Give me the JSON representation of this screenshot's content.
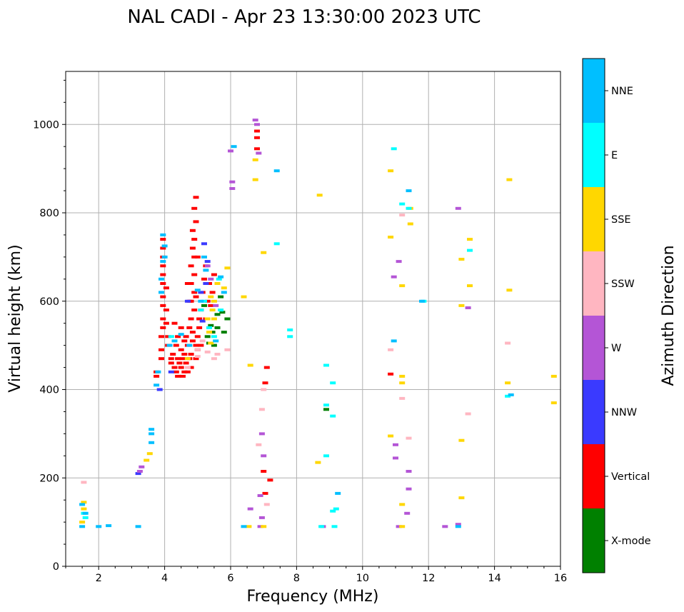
{
  "chart_data": {
    "type": "scatter",
    "title": "NAL CADI - Apr 23 13:30:00 2023 UTC",
    "xlabel": "Frequency (MHz)",
    "ylabel": "Virtual height (km)",
    "xlim": [
      1,
      16
    ],
    "ylim": [
      0,
      1120
    ],
    "xticks": [
      2,
      4,
      6,
      8,
      10,
      12,
      14,
      16
    ],
    "yticks": [
      0,
      200,
      400,
      600,
      800,
      1000
    ],
    "grid": true,
    "colorbar": {
      "title": "Azimuth Direction",
      "categories": [
        {
          "label": "X-mode",
          "color": "#008000"
        },
        {
          "label": "Vertical",
          "color": "#ff0000"
        },
        {
          "label": "NNW",
          "color": "#3a3aff"
        },
        {
          "label": "W",
          "color": "#b455d6"
        },
        {
          "label": "SSW",
          "color": "#ffb6c1"
        },
        {
          "label": "SSE",
          "color": "#ffd700"
        },
        {
          "label": "E",
          "color": "#00ffff"
        },
        {
          "label": "NNE",
          "color": "#00bfff"
        }
      ]
    },
    "series": [
      {
        "name": "X-mode",
        "points": [
          [
            5.3,
            520
          ],
          [
            5.4,
            545
          ],
          [
            5.5,
            500
          ],
          [
            5.6,
            570
          ],
          [
            5.7,
            610
          ],
          [
            5.8,
            530
          ],
          [
            5.9,
            560
          ],
          [
            5.2,
            590
          ],
          [
            5.45,
            530
          ],
          [
            8.9,
            355
          ],
          [
            5.6,
            540
          ],
          [
            5.75,
            575
          ],
          [
            5.35,
            505
          ]
        ]
      },
      {
        "name": "Vertical",
        "points": [
          [
            3.75,
            430
          ],
          [
            3.75,
            440
          ],
          [
            3.9,
            470
          ],
          [
            3.9,
            490
          ],
          [
            3.9,
            520
          ],
          [
            3.95,
            540
          ],
          [
            3.95,
            560
          ],
          [
            3.95,
            590
          ],
          [
            3.95,
            610
          ],
          [
            3.95,
            640
          ],
          [
            3.95,
            660
          ],
          [
            3.95,
            680
          ],
          [
            3.95,
            700
          ],
          [
            3.95,
            720
          ],
          [
            3.95,
            740
          ],
          [
            4.05,
            580
          ],
          [
            4.05,
            550
          ],
          [
            4.1,
            520
          ],
          [
            4.1,
            500
          ],
          [
            4.05,
            630
          ],
          [
            4.2,
            470
          ],
          [
            4.2,
            460
          ],
          [
            4.25,
            480
          ],
          [
            4.3,
            450
          ],
          [
            4.35,
            440
          ],
          [
            4.4,
            470
          ],
          [
            4.4,
            430
          ],
          [
            4.45,
            460
          ],
          [
            4.5,
            490
          ],
          [
            4.5,
            450
          ],
          [
            4.55,
            470
          ],
          [
            4.55,
            430
          ],
          [
            4.6,
            440
          ],
          [
            4.6,
            480
          ],
          [
            4.65,
            520
          ],
          [
            4.65,
            460
          ],
          [
            4.7,
            500
          ],
          [
            4.7,
            440
          ],
          [
            4.75,
            470
          ],
          [
            4.75,
            540
          ],
          [
            4.8,
            450
          ],
          [
            4.8,
            480
          ],
          [
            4.85,
            510
          ],
          [
            4.85,
            530
          ],
          [
            4.8,
            560
          ],
          [
            4.8,
            600
          ],
          [
            4.8,
            640
          ],
          [
            4.8,
            680
          ],
          [
            4.85,
            720
          ],
          [
            4.85,
            760
          ],
          [
            4.9,
            740
          ],
          [
            4.9,
            700
          ],
          [
            4.9,
            660
          ],
          [
            4.9,
            620
          ],
          [
            4.9,
            580
          ],
          [
            4.95,
            500
          ],
          [
            4.95,
            470
          ],
          [
            5.0,
            520
          ],
          [
            5.0,
            490
          ],
          [
            5.05,
            540
          ],
          [
            5.05,
            560
          ],
          [
            5.1,
            500
          ],
          [
            5.1,
            580
          ],
          [
            5.15,
            620
          ],
          [
            5.2,
            650
          ],
          [
            5.25,
            680
          ],
          [
            5.25,
            560
          ],
          [
            5.3,
            600
          ],
          [
            5.35,
            640
          ],
          [
            5.4,
            590
          ],
          [
            5.45,
            620
          ],
          [
            5.5,
            660
          ],
          [
            4.3,
            550
          ],
          [
            4.4,
            520
          ],
          [
            4.5,
            540
          ],
          [
            4.35,
            500
          ],
          [
            4.6,
            510
          ],
          [
            4.75,
            600
          ],
          [
            4.7,
            640
          ],
          [
            4.95,
            610
          ],
          [
            5.0,
            700
          ],
          [
            4.95,
            780
          ],
          [
            4.9,
            810
          ],
          [
            4.95,
            835
          ],
          [
            6.8,
            970
          ],
          [
            6.8,
            985
          ],
          [
            6.8,
            945
          ],
          [
            7.05,
            415
          ],
          [
            7.0,
            215
          ],
          [
            7.05,
            165
          ],
          [
            7.1,
            450
          ],
          [
            7.2,
            195
          ],
          [
            10.85,
            435
          ]
        ]
      },
      {
        "name": "NNW",
        "points": [
          [
            5.2,
            730
          ],
          [
            5.3,
            690
          ],
          [
            5.1,
            620
          ],
          [
            5.25,
            640
          ],
          [
            3.2,
            210
          ],
          [
            4.2,
            440
          ],
          [
            3.85,
            400
          ],
          [
            4.7,
            600
          ],
          [
            5.15,
            555
          ]
        ]
      },
      {
        "name": "W",
        "points": [
          [
            3.25,
            215
          ],
          [
            3.3,
            225
          ],
          [
            5.3,
            680
          ],
          [
            5.4,
            650
          ],
          [
            6.0,
            940
          ],
          [
            6.05,
            855
          ],
          [
            6.05,
            870
          ],
          [
            6.75,
            1010
          ],
          [
            6.8,
            1000
          ],
          [
            6.85,
            935
          ],
          [
            6.95,
            300
          ],
          [
            7.0,
            250
          ],
          [
            6.9,
            160
          ],
          [
            6.9,
            90
          ],
          [
            6.95,
            110
          ],
          [
            6.6,
            130
          ],
          [
            11.1,
            690
          ],
          [
            10.95,
            655
          ],
          [
            11.0,
            275
          ],
          [
            11.0,
            245
          ],
          [
            11.4,
            215
          ],
          [
            11.4,
            175
          ],
          [
            11.35,
            120
          ],
          [
            12.9,
            810
          ],
          [
            13.2,
            585
          ],
          [
            12.5,
            90
          ],
          [
            12.9,
            95
          ],
          [
            8.8,
            90
          ],
          [
            11.1,
            90
          ],
          [
            5.55,
            590
          ]
        ]
      },
      {
        "name": "SSW",
        "points": [
          [
            1.55,
            190
          ],
          [
            5.0,
            490
          ],
          [
            5.3,
            485
          ],
          [
            5.5,
            470
          ],
          [
            5.9,
            490
          ],
          [
            5.6,
            480
          ],
          [
            5.0,
            475
          ],
          [
            7.0,
            400
          ],
          [
            6.95,
            355
          ],
          [
            7.1,
            140
          ],
          [
            11.2,
            795
          ],
          [
            10.85,
            490
          ],
          [
            11.2,
            380
          ],
          [
            11.4,
            290
          ],
          [
            13.2,
            345
          ],
          [
            14.4,
            505
          ],
          [
            6.85,
            275
          ],
          [
            4.7,
            450
          ],
          [
            5.15,
            510
          ]
        ]
      },
      {
        "name": "SSE",
        "points": [
          [
            1.5,
            100
          ],
          [
            1.55,
            130
          ],
          [
            1.55,
            145
          ],
          [
            3.45,
            240
          ],
          [
            3.55,
            255
          ],
          [
            5.3,
            560
          ],
          [
            5.4,
            610
          ],
          [
            5.5,
            600
          ],
          [
            5.6,
            640
          ],
          [
            5.5,
            560
          ],
          [
            5.45,
            580
          ],
          [
            5.4,
            505
          ],
          [
            5.35,
            530
          ],
          [
            5.8,
            630
          ],
          [
            5.9,
            675
          ],
          [
            6.4,
            610
          ],
          [
            6.6,
            455
          ],
          [
            6.75,
            920
          ],
          [
            6.75,
            875
          ],
          [
            6.55,
            90
          ],
          [
            7.0,
            90
          ],
          [
            7.0,
            710
          ],
          [
            8.7,
            840
          ],
          [
            8.65,
            235
          ],
          [
            10.85,
            895
          ],
          [
            10.85,
            745
          ],
          [
            10.85,
            295
          ],
          [
            11.2,
            635
          ],
          [
            11.2,
            430
          ],
          [
            11.2,
            415
          ],
          [
            11.45,
            810
          ],
          [
            11.45,
            775
          ],
          [
            11.2,
            140
          ],
          [
            11.2,
            90
          ],
          [
            13.25,
            740
          ],
          [
            13.25,
            635
          ],
          [
            13.0,
            695
          ],
          [
            13.0,
            590
          ],
          [
            13.0,
            285
          ],
          [
            13.0,
            155
          ],
          [
            14.45,
            875
          ],
          [
            14.45,
            625
          ],
          [
            14.4,
            415
          ],
          [
            15.8,
            430
          ],
          [
            15.8,
            370
          ],
          [
            4.7,
            470
          ]
        ]
      },
      {
        "name": "E",
        "points": [
          [
            1.6,
            110
          ],
          [
            1.55,
            120
          ],
          [
            5.2,
            600
          ],
          [
            5.35,
            540
          ],
          [
            5.5,
            520
          ],
          [
            5.7,
            580
          ],
          [
            5.1,
            580
          ],
          [
            5.65,
            650
          ],
          [
            7.4,
            730
          ],
          [
            7.8,
            535
          ],
          [
            7.8,
            520
          ],
          [
            8.9,
            455
          ],
          [
            8.9,
            365
          ],
          [
            9.1,
            340
          ],
          [
            9.1,
            415
          ],
          [
            8.9,
            250
          ],
          [
            8.75,
            90
          ],
          [
            9.15,
            90
          ],
          [
            9.1,
            125
          ],
          [
            10.95,
            945
          ],
          [
            11.4,
            810
          ],
          [
            11.2,
            820
          ],
          [
            11.85,
            600
          ],
          [
            13.25,
            715
          ],
          [
            14.4,
            385
          ],
          [
            9.2,
            130
          ],
          [
            4.2,
            520
          ]
        ]
      },
      {
        "name": "NNE",
        "points": [
          [
            1.5,
            140
          ],
          [
            1.6,
            120
          ],
          [
            1.5,
            90
          ],
          [
            2.0,
            90
          ],
          [
            2.3,
            92
          ],
          [
            3.2,
            90
          ],
          [
            3.6,
            300
          ],
          [
            3.6,
            310
          ],
          [
            3.6,
            280
          ],
          [
            3.9,
            620
          ],
          [
            3.9,
            650
          ],
          [
            3.95,
            690
          ],
          [
            4.0,
            700
          ],
          [
            3.95,
            750
          ],
          [
            4.0,
            725
          ],
          [
            3.8,
            440
          ],
          [
            3.75,
            410
          ],
          [
            4.15,
            500
          ],
          [
            4.3,
            510
          ],
          [
            4.5,
            525
          ],
          [
            4.75,
            500
          ],
          [
            5.0,
            625
          ],
          [
            5.1,
            600
          ],
          [
            5.2,
            700
          ],
          [
            5.25,
            670
          ],
          [
            5.7,
            655
          ],
          [
            5.8,
            620
          ],
          [
            6.1,
            950
          ],
          [
            7.4,
            895
          ],
          [
            9.25,
            165
          ],
          [
            10.95,
            510
          ],
          [
            11.4,
            850
          ],
          [
            11.8,
            600
          ],
          [
            14.5,
            388
          ],
          [
            12.9,
            90
          ],
          [
            6.4,
            90
          ],
          [
            5.55,
            510
          ]
        ]
      }
    ]
  }
}
